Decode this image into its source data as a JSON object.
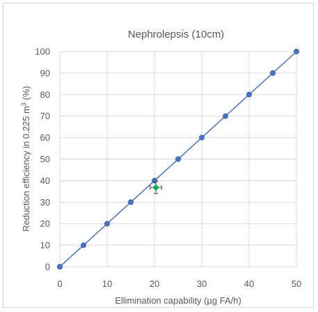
{
  "chart_data": {
    "type": "scatter",
    "title": "Nephrolepsis  (10cm)",
    "xlabel": "Ellimination capability (µg FA/h)",
    "ylabel_parts": {
      "before": "Reduction efficiency in 0.225 m",
      "sup": "3",
      "after": " (%)"
    },
    "xlim": [
      0,
      50
    ],
    "ylim": [
      0,
      100
    ],
    "x_ticks": [
      0,
      10,
      20,
      30,
      40,
      50
    ],
    "y_ticks": [
      0,
      10,
      20,
      30,
      40,
      50,
      60,
      70,
      80,
      90,
      100
    ],
    "grid": true,
    "legend": "none",
    "series": [
      {
        "color": "#4472c4",
        "marker": "circle",
        "line": true,
        "x": [
          0,
          5,
          10,
          15,
          20,
          25,
          30,
          35,
          40,
          45,
          50
        ],
        "y": [
          0,
          10,
          20,
          30,
          40,
          50,
          60,
          70,
          80,
          90,
          100
        ]
      },
      {
        "color": "#00b050",
        "marker": "diamond",
        "line": false,
        "x": [
          20.3
        ],
        "y": [
          36.8
        ],
        "x_error": [
          1.2
        ],
        "y_error": [
          2.8
        ],
        "error_color": "#404040"
      }
    ],
    "colors": {
      "grid": "#d9d9d9",
      "axis_text": "#595959",
      "title": "#595959"
    }
  }
}
